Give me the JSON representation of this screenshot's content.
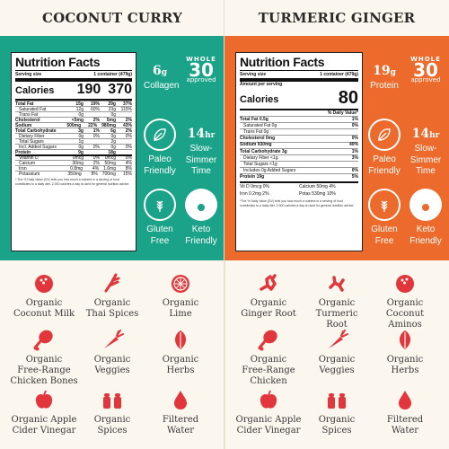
{
  "colors": {
    "left_accent": "#1aa389",
    "right_accent": "#ec6a2b",
    "icon_red": "#e0363c",
    "background": "#fbf6ee"
  },
  "left": {
    "title": "COCONUT CURRY",
    "nutrition": {
      "heading": "Nutrition Facts",
      "serving_label": "Serving size",
      "serving_value": "1 container (479g)",
      "cal_label": "Calories",
      "cal_values": [
        "190",
        "370"
      ],
      "rows": [
        {
          "name": "Total Fat",
          "vals": [
            "15g",
            "19%",
            "29g",
            "37%"
          ],
          "bold": true
        },
        {
          "name": "Saturated Fat",
          "vals": [
            "12g",
            "60%",
            "23g",
            "115%"
          ],
          "bold": false
        },
        {
          "name": "Trans Fat",
          "vals": [
            "0g",
            "",
            "0g",
            ""
          ],
          "bold": false
        },
        {
          "name": "Cholesterol",
          "vals": [
            "<5mg",
            "2%",
            "5mg",
            "2%"
          ],
          "bold": true
        },
        {
          "name": "Sodium",
          "vals": [
            "500mg",
            "22%",
            "980mg",
            "43%"
          ],
          "bold": true
        },
        {
          "name": "Total Carbohydrate",
          "vals": [
            "3g",
            "1%",
            "6g",
            "2%"
          ],
          "bold": true
        },
        {
          "name": "Dietary Fiber",
          "vals": [
            "0g",
            "0%",
            "0g",
            "0%"
          ],
          "bold": false
        },
        {
          "name": "Total Sugars",
          "vals": [
            "1g",
            "",
            "2g",
            ""
          ],
          "bold": false
        },
        {
          "name": "Incl. Added Sugars",
          "vals": [
            "0g",
            "0%",
            "0g",
            "0%"
          ],
          "bold": false
        },
        {
          "name": "Protein",
          "vals": [
            "9g",
            "",
            "18g",
            ""
          ],
          "bold": true
        },
        {
          "name": "Vitamin D",
          "vals": [
            "0mcg",
            "0%",
            "0mcg",
            "0%"
          ],
          "bold": false
        },
        {
          "name": "Calcium",
          "vals": [
            "30mg",
            "2%",
            "50mg",
            "4%"
          ],
          "bold": false
        },
        {
          "name": "Iron",
          "vals": [
            "0.8mg",
            "4%",
            "1.6mg",
            "8%"
          ],
          "bold": false
        },
        {
          "name": "Potassium",
          "vals": [
            "350mg",
            "8%",
            "700mg",
            "15%"
          ],
          "bold": false
        }
      ],
      "footnote": "* The % Daily Value (DV) tells you how much a nutrient in a serving of food contributes to a daily diet. 2,000 calories a day is used for general nutrition advice."
    },
    "badges": {
      "protein_value": "6",
      "protein_unit": "g",
      "protein_label": "Collagen",
      "whole30_top": "WHOLE",
      "whole30_num": "30",
      "whole30_bottom": "approved",
      "paleo": [
        "Paleo",
        "Friendly"
      ],
      "simmer_value": "14",
      "simmer_unit": "hr",
      "simmer": [
        "Slow-",
        "Simmer",
        "Time"
      ],
      "gluten": [
        "Gluten",
        "Free"
      ],
      "keto": [
        "Keto",
        "Friendly"
      ]
    },
    "ingredients": [
      {
        "icon": "coconut-icon",
        "lines": [
          "Organic",
          "Coconut Milk"
        ]
      },
      {
        "icon": "thai-spices-icon",
        "lines": [
          "Organic",
          "Thai Spices"
        ]
      },
      {
        "icon": "lime-icon",
        "lines": [
          "Organic",
          "Lime"
        ]
      },
      {
        "icon": "chicken-leg-icon",
        "lines": [
          "Organic",
          "Free-Range",
          "Chicken Bones"
        ]
      },
      {
        "icon": "carrot-icon",
        "lines": [
          "Organic",
          "Veggies"
        ]
      },
      {
        "icon": "herbs-icon",
        "lines": [
          "Organic",
          "Herbs"
        ]
      },
      {
        "icon": "apple-icon",
        "lines": [
          "Organic Apple",
          "Cider Vinegar"
        ]
      },
      {
        "icon": "spice-shakers-icon",
        "lines": [
          "Organic",
          "Spices"
        ]
      },
      {
        "icon": "water-drop-icon",
        "lines": [
          "Filtered",
          "Water"
        ]
      }
    ]
  },
  "right": {
    "title": "TURMERIC GINGER",
    "nutrition": {
      "heading": "Nutrition Facts",
      "serving_label": "Serving size",
      "serving_value": "1 container (479g)",
      "amount_label": "Amount per serving",
      "cal_label": "Calories",
      "cal_value": "80",
      "dv_label": "% Daily Value*",
      "rows": [
        {
          "name": "Total Fat 0.5g",
          "dv": "1%",
          "bold": true
        },
        {
          "name": "Saturated Fat 0g",
          "dv": "0%",
          "bold": false
        },
        {
          "name": "Trans Fat 0g",
          "dv": "",
          "bold": false
        },
        {
          "name": "Cholesterol 0mg",
          "dv": "0%",
          "bold": true
        },
        {
          "name": "Sodium 930mg",
          "dv": "40%",
          "bold": true
        },
        {
          "name": "Total Carbohydrate 3g",
          "dv": "1%",
          "bold": true
        },
        {
          "name": "Dietary Fiber <1g",
          "dv": "3%",
          "bold": false
        },
        {
          "name": "Total Sugars <1g",
          "dv": "",
          "bold": false
        },
        {
          "name": "Includes 0g Added Sugars",
          "dv": "0%",
          "bold": false
        },
        {
          "name": "Protein 19g",
          "dv": "5%",
          "bold": true
        }
      ],
      "micros": [
        "Vit D 0mcg 0%",
        "Calcium 50mg 4%",
        "Iron 0.2mg 2%",
        "Potas 530mg 10%"
      ],
      "footnote": "*The % Daily Value (DV) tells you how much a nutrient in a serving of food contributes to a daily diet. 2,000 calories a day is used for general nutrition advice."
    },
    "badges": {
      "protein_value": "19",
      "protein_unit": "g",
      "protein_label": "Protein",
      "whole30_top": "WHOLE",
      "whole30_num": "30",
      "whole30_bottom": "approved",
      "paleo": [
        "Paleo",
        "Friendly"
      ],
      "simmer_value": "14",
      "simmer_unit": "hr",
      "simmer": [
        "Slow-",
        "Simmer",
        "Time"
      ],
      "gluten": [
        "Gluten",
        "Free"
      ],
      "keto": [
        "Keto",
        "Friendly"
      ]
    },
    "ingredients": [
      {
        "icon": "ginger-root-icon",
        "lines": [
          "Organic",
          "Ginger Root"
        ]
      },
      {
        "icon": "turmeric-root-icon",
        "lines": [
          "Organic",
          "Turmeric",
          "Root"
        ]
      },
      {
        "icon": "coconut-icon",
        "lines": [
          "Organic",
          "Coconut",
          "Aminos"
        ]
      },
      {
        "icon": "chicken-leg-icon",
        "lines": [
          "Organic",
          "Free-Range",
          "Chicken"
        ]
      },
      {
        "icon": "carrot-icon",
        "lines": [
          "Organic",
          "Veggies"
        ]
      },
      {
        "icon": "herbs-icon",
        "lines": [
          "Organic",
          "Herbs"
        ]
      },
      {
        "icon": "apple-icon",
        "lines": [
          "Organic Apple",
          "Cider Vinegar"
        ]
      },
      {
        "icon": "spice-shakers-icon",
        "lines": [
          "Organic",
          "Spices"
        ]
      },
      {
        "icon": "water-drop-icon",
        "lines": [
          "Filtered",
          "Water"
        ]
      }
    ]
  }
}
